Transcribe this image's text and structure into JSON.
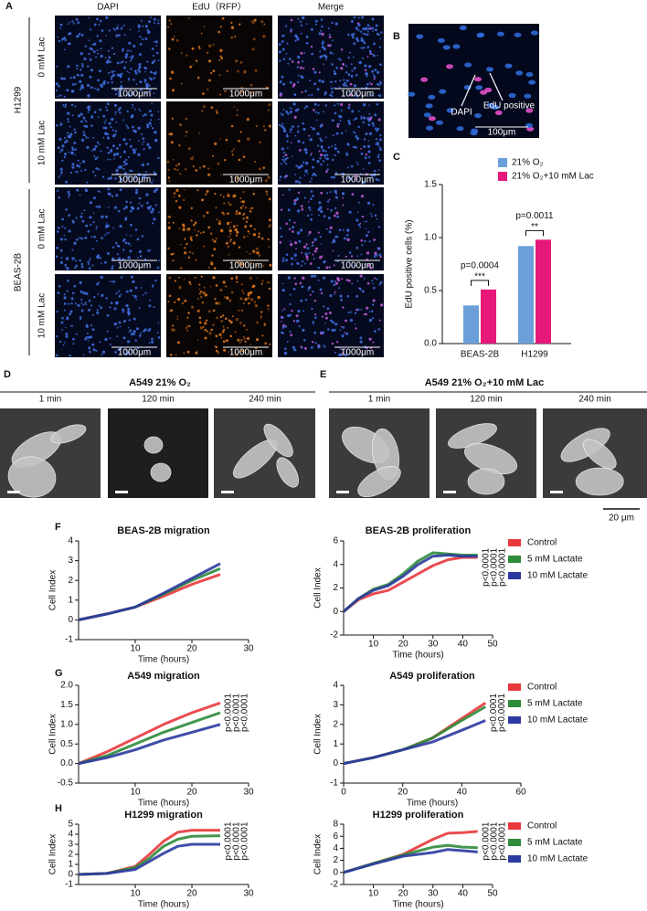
{
  "figure": {
    "panel_labels": [
      "A",
      "B",
      "C",
      "D",
      "E",
      "F",
      "G",
      "H"
    ],
    "panel_a": {
      "columns": [
        "DAPI",
        "EdU（RFP）",
        "Merge"
      ],
      "groups": [
        "H1299",
        "BEAS-2B"
      ],
      "rows": [
        "0 mM Lac",
        "10 mM Lac"
      ],
      "scale_bar": "1000μm"
    },
    "panel_b": {
      "labels": [
        "DAPI",
        "EdU positive"
      ],
      "scale_bar": "100μm"
    },
    "panel_d": {
      "title": "A549 21% O₂",
      "times": [
        "1 min",
        "120 min",
        "240 min"
      ]
    },
    "panel_e": {
      "title": "A549 21% O₂+10 mM Lac",
      "times": [
        "1 min",
        "120 min",
        "240 min"
      ]
    },
    "scale_bar_de": "20 μm"
  },
  "chart_data": [
    {
      "type": "bar",
      "y_label": "EdU positive cells (%)",
      "categories": [
        "BEAS-2B",
        "H1299"
      ],
      "series": [
        {
          "name": "21% O₂",
          "color": "#6a9fd8",
          "values": [
            0.36,
            0.92
          ]
        },
        {
          "name": "21% O₂+10 mM Lac",
          "color": "#e6197b",
          "values": [
            0.51,
            0.98
          ]
        }
      ],
      "ylim": [
        0,
        1.5
      ],
      "yticks": [
        {
          "value": 0,
          "label": "0.0"
        },
        0.5,
        {
          "value": 1,
          "label": "1.0"
        },
        1.5
      ],
      "annotations": [
        {
          "p": "p=0.0004",
          "stars": "***"
        },
        {
          "p": "p=0.0011",
          "stars": "**"
        }
      ]
    },
    {
      "type": "line",
      "title": "BEAS-2B migration",
      "x_label": "Time (hours)",
      "y_label": "Cell Index",
      "legend": false,
      "x": [
        0,
        5,
        10,
        15,
        20,
        25
      ],
      "series": [
        {
          "name": "Control",
          "color": "#e8383d",
          "values": [
            0,
            0.3,
            0.65,
            1.2,
            1.8,
            2.3
          ]
        },
        {
          "name": "5 mM Lactate",
          "color": "#2e8b3a",
          "values": [
            0,
            0.3,
            0.65,
            1.3,
            2.0,
            2.6
          ]
        },
        {
          "name": "10 mM Lactate",
          "color": "#2b3aa0",
          "values": [
            0,
            0.3,
            0.65,
            1.35,
            2.1,
            2.85
          ]
        }
      ],
      "xlim": [
        0,
        30
      ],
      "xticks": [
        10,
        20,
        30
      ],
      "ylim": [
        -1,
        4
      ],
      "yticks": [
        -1,
        0,
        1,
        2,
        3,
        4
      ],
      "annotations": []
    },
    {
      "type": "line",
      "title": "BEAS-2B proliferation",
      "x_label": "Time (hours)",
      "y_label": "Cell Index",
      "legend": true,
      "x": [
        0,
        5,
        10,
        15,
        20,
        25,
        30,
        35,
        40,
        45
      ],
      "series": [
        {
          "name": "Control",
          "color": "#e8383d",
          "values": [
            0,
            1.0,
            1.5,
            1.8,
            2.5,
            3.2,
            3.9,
            4.4,
            4.6,
            4.6
          ]
        },
        {
          "name": "5 mM Lactate",
          "color": "#2e8b3a",
          "values": [
            0,
            1.1,
            1.9,
            2.3,
            3.2,
            4.3,
            5.0,
            4.9,
            4.8,
            4.8
          ]
        },
        {
          "name": "10 mM Lactate",
          "color": "#2b3aa0",
          "values": [
            0,
            1.1,
            1.8,
            2.2,
            3.0,
            4.0,
            4.7,
            4.8,
            4.7,
            4.7
          ]
        }
      ],
      "xlim": [
        0,
        50
      ],
      "xticks": [
        10,
        20,
        30,
        40,
        50
      ],
      "ylim": [
        -2,
        6
      ],
      "yticks": [
        -2,
        0,
        2,
        4,
        6
      ],
      "annotations": [
        "p<0.0001",
        "p<0.0001",
        "p<0.0001"
      ]
    },
    {
      "type": "line",
      "title": "A549 migration",
      "x_label": "Time (hours)",
      "y_label": "Cell Index",
      "legend": false,
      "x": [
        0,
        5,
        10,
        15,
        20,
        25
      ],
      "series": [
        {
          "name": "Control",
          "color": "#e8383d",
          "values": [
            0,
            0.3,
            0.65,
            1.0,
            1.3,
            1.55
          ]
        },
        {
          "name": "5 mM Lactate",
          "color": "#2e8b3a",
          "values": [
            0,
            0.2,
            0.5,
            0.8,
            1.05,
            1.3
          ]
        },
        {
          "name": "10 mM Lactate",
          "color": "#2b3aa0",
          "values": [
            0,
            0.15,
            0.35,
            0.6,
            0.8,
            1.0
          ]
        }
      ],
      "xlim": [
        0,
        30
      ],
      "xticks": [
        10,
        20,
        30
      ],
      "ylim": [
        -0.5,
        2
      ],
      "yticks": [
        -0.5,
        {
          "value": 0,
          "label": "0.0"
        },
        0.5,
        {
          "value": 1,
          "label": "1.0"
        },
        1.5,
        {
          "value": 2,
          "label": "2.0"
        }
      ],
      "annotations": [
        "p<0.0001",
        "p<0.0001",
        "p<0.0001"
      ]
    },
    {
      "type": "line",
      "title": "A549 proliferation",
      "x_label": "Time (hours)",
      "y_label": "Cell Index",
      "legend": true,
      "x": [
        0,
        10,
        20,
        30,
        40,
        48
      ],
      "series": [
        {
          "name": "Control",
          "color": "#e8383d",
          "values": [
            0,
            0.3,
            0.7,
            1.3,
            2.3,
            3.1
          ]
        },
        {
          "name": "5 mM Lactate",
          "color": "#2e8b3a",
          "values": [
            0,
            0.3,
            0.7,
            1.3,
            2.2,
            2.9
          ]
        },
        {
          "name": "10 mM Lactate",
          "color": "#2b3aa0",
          "values": [
            0,
            0.3,
            0.7,
            1.1,
            1.7,
            2.2
          ]
        }
      ],
      "xlim": [
        0,
        60
      ],
      "xticks": [
        0,
        20,
        40,
        60
      ],
      "ylim": [
        -1,
        4
      ],
      "yticks": [
        -1,
        0,
        1,
        2,
        3,
        4
      ],
      "annotations": [
        "p<0.0001",
        "p<0.0001"
      ]
    },
    {
      "type": "line",
      "title": "H1299  migration",
      "x_label": "Time (hours)",
      "y_label": "Cell Index",
      "legend": false,
      "x": [
        0,
        5,
        10,
        12.5,
        15,
        17.5,
        20,
        25
      ],
      "series": [
        {
          "name": "Control",
          "color": "#e8383d",
          "values": [
            0,
            0.1,
            0.8,
            2.0,
            3.3,
            4.2,
            4.4,
            4.4
          ]
        },
        {
          "name": "5 mM Lactate",
          "color": "#2e8b3a",
          "values": [
            0,
            0.1,
            0.7,
            1.6,
            2.8,
            3.5,
            3.8,
            3.85
          ]
        },
        {
          "name": "10 mM Lactate",
          "color": "#2b3aa0",
          "values": [
            0,
            0.1,
            0.5,
            1.3,
            2.1,
            2.8,
            3.0,
            3.0
          ]
        }
      ],
      "xlim": [
        0,
        30
      ],
      "xticks": [
        10,
        20,
        30
      ],
      "ylim": [
        -1,
        5
      ],
      "yticks": [
        -1,
        0,
        1,
        2,
        3,
        4,
        5
      ],
      "annotations": [
        "p<0.0001",
        "p<0.0001",
        "p<0.0001"
      ]
    },
    {
      "type": "line",
      "title": "H1299 proliferation",
      "x_label": "Time (hours)",
      "y_label": "Cell Index",
      "legend": true,
      "x": [
        0,
        10,
        20,
        30,
        35,
        40,
        45
      ],
      "series": [
        {
          "name": "Control",
          "color": "#e8383d",
          "values": [
            0,
            1.5,
            3.0,
            5.5,
            6.5,
            6.6,
            6.8
          ]
        },
        {
          "name": "5 mM Lactate",
          "color": "#2e8b3a",
          "values": [
            0,
            1.5,
            2.9,
            4.2,
            4.5,
            4.2,
            4.1
          ]
        },
        {
          "name": "10 mM Lactate",
          "color": "#2b3aa0",
          "values": [
            0,
            1.4,
            2.7,
            3.3,
            3.8,
            3.6,
            3.4
          ]
        }
      ],
      "xlim": [
        0,
        50
      ],
      "xticks": [
        10,
        20,
        30,
        40,
        50
      ],
      "ylim": [
        -2,
        8
      ],
      "yticks": [
        -2,
        0,
        2,
        4,
        6,
        8
      ],
      "annotations": [
        "p<0.0001",
        "p<0.0001",
        "p<0.0001"
      ]
    }
  ]
}
